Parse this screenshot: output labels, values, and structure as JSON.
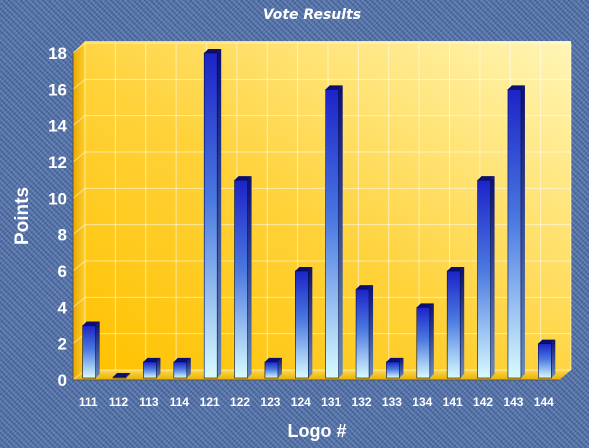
{
  "colors": {
    "background": "#4d6ea8",
    "plot_light": "#fff6b8",
    "plot_dark": "#ffc400",
    "bar_top": "#1c23c8",
    "bar_bottom": "#d8fbff"
  },
  "chart_data": {
    "type": "bar",
    "title": "Vote Results",
    "xlabel": "Logo #",
    "ylabel": "Points",
    "ylim": [
      0,
      18
    ],
    "yticks": [
      0,
      2,
      4,
      6,
      8,
      10,
      12,
      14,
      16,
      18
    ],
    "grid": true,
    "categories": [
      "111",
      "112",
      "113",
      "114",
      "121",
      "122",
      "123",
      "124",
      "131",
      "132",
      "133",
      "134",
      "141",
      "142",
      "143",
      "144"
    ],
    "values": [
      3,
      0,
      1,
      1,
      18,
      11,
      1,
      6,
      16,
      5,
      1,
      4,
      6,
      11,
      16,
      2
    ]
  }
}
